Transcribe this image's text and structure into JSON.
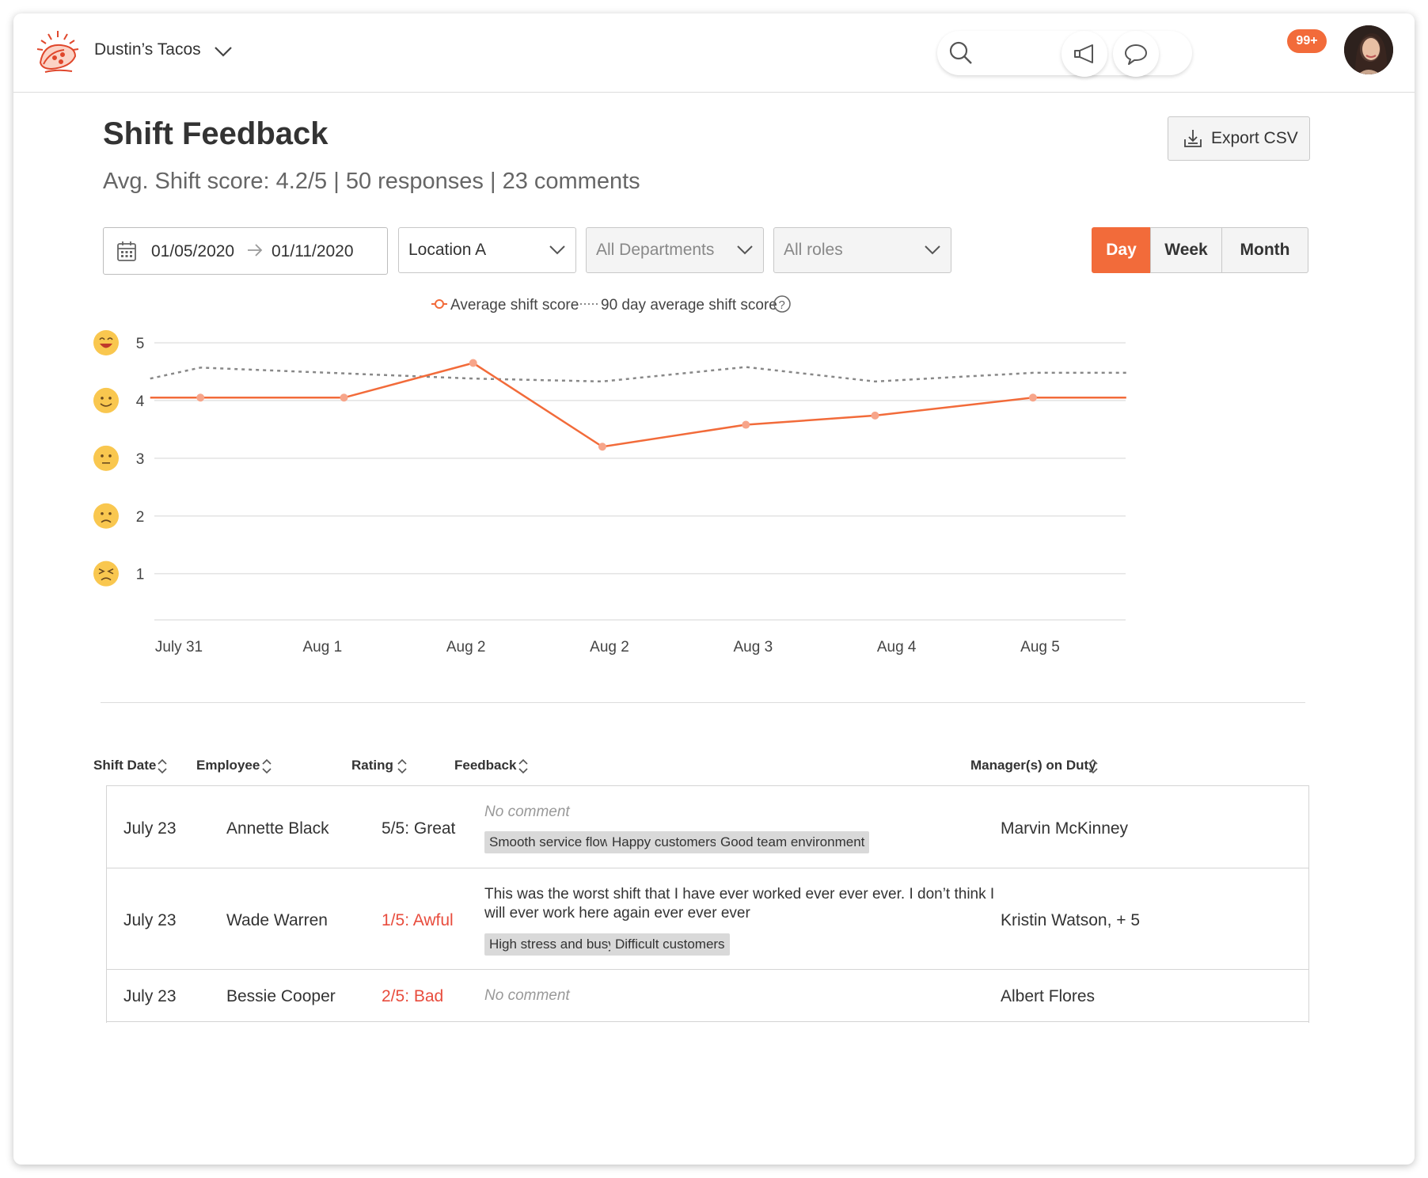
{
  "app": {
    "brand": "Dustin’s Tacos",
    "notifications_badge": "99+"
  },
  "header": {
    "title": "Shift Feedback",
    "subtitle": "Avg. Shift score: 4.2/5 | 50 responses | 23 comments",
    "export_label": "Export CSV"
  },
  "filters": {
    "date_start": "01/05/2020",
    "date_end": "01/11/2020",
    "location": "Location A",
    "departments": "All Departments",
    "roles": "All roles",
    "granularity": [
      "Day",
      "Week",
      "Month"
    ],
    "selected_granularity": "Day"
  },
  "colors": {
    "accent": "#f26b3a",
    "line": "#f26b3a",
    "avg_line": "#888888",
    "bad_rating": "#e84c3d",
    "emoji": "#f9c74f"
  },
  "chart_data": {
    "type": "line",
    "legend": [
      "Average shift score",
      "90 day average shift score"
    ],
    "categories": [
      "July 31",
      "Aug 1",
      "Aug 2",
      "Aug 2",
      "Aug 3",
      "Aug 4",
      "Aug 5"
    ],
    "yticks": [
      "5",
      "4",
      "3",
      "2",
      "1"
    ],
    "ylim": [
      0.2,
      5
    ],
    "series": [
      {
        "name": "Average shift score",
        "x": [
          -0.2,
          0.15,
          1.15,
          2.05,
          2.95,
          3.95,
          4.85,
          5.95,
          6.6
        ],
        "values": [
          4.05,
          4.05,
          4.05,
          4.65,
          3.2,
          3.58,
          3.74,
          4.05,
          4.05
        ],
        "marker_indices": [
          1,
          2,
          3,
          4,
          5,
          6,
          7
        ]
      },
      {
        "name": "90 day average shift score",
        "x": [
          -0.2,
          0.15,
          1.15,
          2.05,
          2.95,
          3.95,
          4.85,
          5.95,
          6.6
        ],
        "values": [
          4.38,
          4.57,
          4.47,
          4.38,
          4.33,
          4.58,
          4.33,
          4.48,
          4.48
        ]
      }
    ]
  },
  "table": {
    "columns": [
      "Shift Date",
      "Employee",
      "Rating",
      "Feedback",
      "Manager(s) on Duty"
    ],
    "rows": [
      {
        "date": "July 23",
        "employee": "Annette Black",
        "rating": "5/5: Great",
        "feedback": "No comment",
        "tags": [
          "Smooth service flow",
          "Happy customers",
          "Good team environment"
        ],
        "manager": "Marvin McKinney"
      },
      {
        "date": "July 23",
        "employee": "Wade Warren",
        "rating": "1/5: Awful",
        "feedback_line1": "This was the worst shift that I have ever worked ever ever ever. I don’t think I",
        "feedback_line2": "will ever work here again ever ever ever",
        "tags": [
          "High stress and busy",
          "Difficult customers"
        ],
        "manager": "Kristin Watson, + 5"
      },
      {
        "date": "July 23",
        "employee": "Bessie Cooper",
        "rating": "2/5: Bad",
        "feedback": "No comment",
        "manager": "Albert Flores"
      }
    ]
  }
}
